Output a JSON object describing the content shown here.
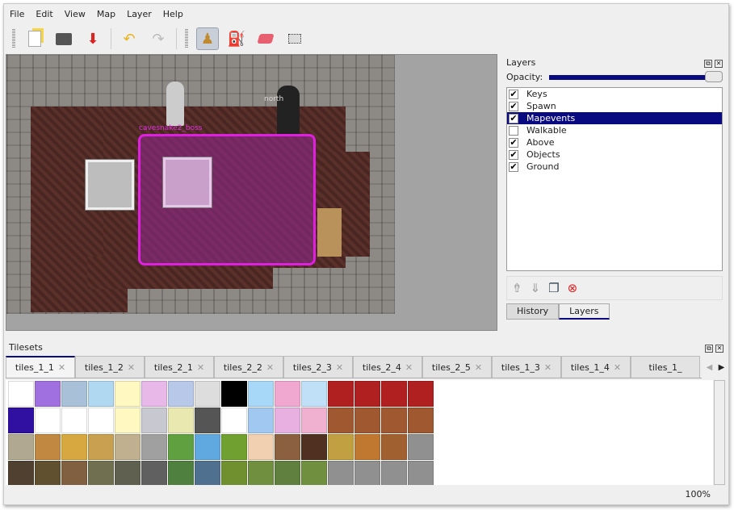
{
  "menu": [
    "File",
    "Edit",
    "View",
    "Map",
    "Layer",
    "Help"
  ],
  "toolbar": {
    "icons": [
      "new-file-icon",
      "open-icon",
      "save-icon",
      "undo-icon",
      "redo-icon",
      "stamp-brush-icon",
      "bucket-fill-icon",
      "eraser-icon",
      "rect-select-icon"
    ],
    "active": "stamp-brush-icon"
  },
  "map": {
    "object_labels": {
      "boss": "cavesnake2_boss",
      "north": "north"
    },
    "selection_color": "#e020e0"
  },
  "layers_panel": {
    "title": "Layers",
    "opacity_label": "Opacity:",
    "opacity": 1.0,
    "layers": [
      {
        "name": "Keys",
        "visible": true
      },
      {
        "name": "Spawn",
        "visible": true
      },
      {
        "name": "Mapevents",
        "visible": true,
        "selected": true
      },
      {
        "name": "Walkable",
        "visible": false
      },
      {
        "name": "Above",
        "visible": true
      },
      {
        "name": "Objects",
        "visible": true
      },
      {
        "name": "Ground",
        "visible": true
      }
    ],
    "tabs": [
      "History",
      "Layers"
    ],
    "active_tab": "Layers"
  },
  "tilesets": {
    "title": "Tilesets",
    "tabs": [
      "tiles_1_1",
      "tiles_1_2",
      "tiles_2_1",
      "tiles_2_2",
      "tiles_2_3",
      "tiles_2_4",
      "tiles_2_5",
      "tiles_1_3",
      "tiles_1_4",
      "tiles_1_"
    ],
    "active": "tiles_1_1"
  },
  "status": {
    "zoom": "100%"
  }
}
